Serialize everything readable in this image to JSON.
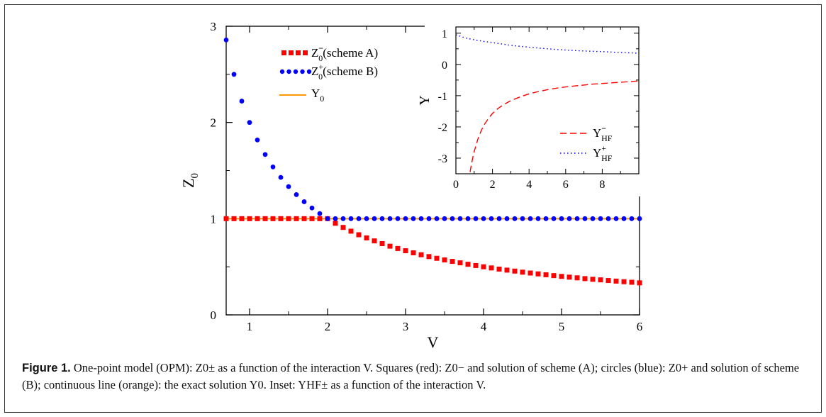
{
  "caption": {
    "label": "Figure 1.",
    "text": "One-point model (OPM): Z0± as a function of the interaction V. Squares (red): Z0− and solution of scheme (A); circles (blue): Z0+ and solution of scheme (B); continuous line (orange): the exact solution Y0. Inset: YHF± as a function of the interaction V."
  },
  "chart_data": [
    {
      "type": "scatter",
      "title": "",
      "xlabel": "V",
      "ylabel": "Z0",
      "xlim": [
        0.7,
        6
      ],
      "ylim": [
        0,
        3
      ],
      "xticks": [
        "1",
        "2",
        "3",
        "4",
        "5",
        "6"
      ],
      "yticks": [
        "0",
        "1",
        "2",
        "3"
      ],
      "grid": false,
      "legend_position": "top-left",
      "series": [
        {
          "name": "Z0− (scheme A)",
          "marker": "square",
          "color": "#ff0000",
          "x": [
            0.7,
            0.8,
            0.9,
            1.0,
            1.1,
            1.2,
            1.3,
            1.4,
            1.5,
            1.6,
            1.7,
            1.8,
            1.9,
            2.0,
            2.1,
            2.2,
            2.3,
            2.4,
            2.5,
            2.6,
            2.7,
            2.8,
            2.9,
            3.0,
            3.1,
            3.2,
            3.3,
            3.4,
            3.5,
            3.6,
            3.7,
            3.8,
            3.9,
            4.0,
            4.1,
            4.2,
            4.3,
            4.4,
            4.5,
            4.6,
            4.7,
            4.8,
            4.9,
            5.0,
            5.1,
            5.2,
            5.3,
            5.4,
            5.5,
            5.6,
            5.7,
            5.8,
            5.9,
            6.0
          ],
          "y": [
            1,
            1,
            1,
            1,
            1,
            1,
            1,
            1,
            1,
            1,
            1,
            1,
            1,
            1,
            0.952,
            0.909,
            0.87,
            0.833,
            0.8,
            0.769,
            0.741,
            0.714,
            0.69,
            0.667,
            0.645,
            0.625,
            0.606,
            0.588,
            0.571,
            0.556,
            0.541,
            0.526,
            0.513,
            0.5,
            0.488,
            0.476,
            0.465,
            0.455,
            0.444,
            0.435,
            0.426,
            0.417,
            0.408,
            0.4,
            0.392,
            0.385,
            0.377,
            0.37,
            0.364,
            0.357,
            0.351,
            0.345,
            0.339,
            0.333
          ]
        },
        {
          "name": "Z0+ (scheme B)",
          "marker": "circle",
          "color": "#0000ff",
          "x": [
            0.7,
            0.8,
            0.9,
            1.0,
            1.1,
            1.2,
            1.3,
            1.4,
            1.5,
            1.6,
            1.7,
            1.8,
            1.9,
            2.0,
            2.1,
            2.2,
            2.3,
            2.4,
            2.5,
            2.6,
            2.7,
            2.8,
            2.9,
            3.0,
            3.1,
            3.2,
            3.3,
            3.4,
            3.5,
            3.6,
            3.7,
            3.8,
            3.9,
            4.0,
            4.1,
            4.2,
            4.3,
            4.4,
            4.5,
            4.6,
            4.7,
            4.8,
            4.9,
            5.0,
            5.1,
            5.2,
            5.3,
            5.4,
            5.5,
            5.6,
            5.7,
            5.8,
            5.9,
            6.0
          ],
          "y": [
            2.857,
            2.5,
            2.222,
            2.0,
            1.818,
            1.667,
            1.538,
            1.429,
            1.333,
            1.25,
            1.176,
            1.111,
            1.053,
            1,
            1,
            1,
            1,
            1,
            1,
            1,
            1,
            1,
            1,
            1,
            1,
            1,
            1,
            1,
            1,
            1,
            1,
            1,
            1,
            1,
            1,
            1,
            1,
            1,
            1,
            1,
            1,
            1,
            1,
            1,
            1,
            1,
            1,
            1,
            1,
            1,
            1,
            1,
            1,
            1
          ]
        },
        {
          "name": "Y0",
          "marker": "line",
          "color": "#ff9900",
          "x": [
            0.7,
            6.0
          ],
          "y": [
            1,
            1
          ]
        }
      ]
    },
    {
      "type": "line",
      "title": "",
      "xlabel": "",
      "ylabel": "Y",
      "xlim": [
        0,
        10
      ],
      "ylim": [
        -3.5,
        1.2
      ],
      "xticks": [
        "0",
        "2",
        "4",
        "6",
        "8"
      ],
      "yticks": [
        "1",
        "0",
        "-1",
        "-2",
        "-3"
      ],
      "grid": false,
      "legend_position": "bottom-right",
      "series": [
        {
          "name": "YHF−",
          "style": "dashed",
          "color": "#ff0000",
          "x": [
            0.7,
            0.8,
            0.9,
            1.0,
            1.2,
            1.4,
            1.6,
            1.8,
            2.0,
            2.3,
            2.6,
            3.0,
            3.5,
            4.0,
            4.5,
            5.0,
            5.5,
            6.0,
            6.5,
            7.0,
            7.5,
            8.0,
            8.5,
            9.0,
            9.5,
            10.0
          ],
          "y": [
            -3.76,
            -3.36,
            -3.05,
            -2.79,
            -2.39,
            -2.1,
            -1.88,
            -1.71,
            -1.57,
            -1.41,
            -1.29,
            -1.16,
            -1.04,
            -0.94,
            -0.87,
            -0.81,
            -0.76,
            -0.72,
            -0.69,
            -0.66,
            -0.63,
            -0.61,
            -0.59,
            -0.57,
            -0.55,
            -0.53
          ]
        },
        {
          "name": "YHF+",
          "style": "dotted",
          "color": "#0000ff",
          "x": [
            0.0,
            0.5,
            1.0,
            1.5,
            2.0,
            3.0,
            4.0,
            5.0,
            6.0,
            7.0,
            8.0,
            9.0,
            10.0
          ],
          "y": [
            0.95,
            0.85,
            0.79,
            0.74,
            0.7,
            0.61,
            0.55,
            0.5,
            0.46,
            0.43,
            0.41,
            0.38,
            0.36
          ]
        }
      ]
    }
  ]
}
